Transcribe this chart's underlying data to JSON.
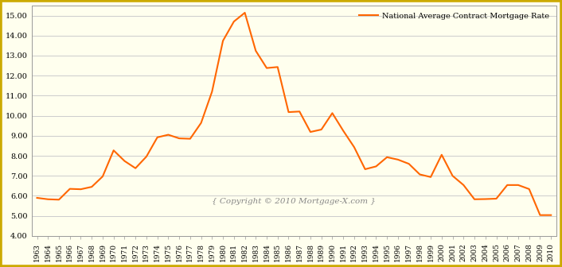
{
  "years": [
    1963,
    1964,
    1965,
    1966,
    1967,
    1968,
    1969,
    1970,
    1971,
    1972,
    1973,
    1974,
    1975,
    1976,
    1977,
    1978,
    1979,
    1980,
    1981,
    1982,
    1983,
    1984,
    1985,
    1986,
    1987,
    1988,
    1989,
    1990,
    1991,
    1992,
    1993,
    1994,
    1995,
    1996,
    1997,
    1998,
    1999,
    2000,
    2001,
    2002,
    2003,
    2004,
    2005,
    2006,
    2007,
    2008,
    2009,
    2010
  ],
  "rates": [
    5.9,
    5.83,
    5.81,
    6.35,
    6.33,
    6.45,
    6.97,
    8.27,
    7.74,
    7.38,
    7.96,
    8.92,
    9.05,
    8.87,
    8.85,
    9.64,
    11.2,
    13.74,
    14.7,
    15.14,
    13.24,
    12.38,
    12.43,
    10.18,
    10.21,
    9.19,
    9.31,
    10.13,
    9.25,
    8.43,
    7.33,
    7.47,
    7.93,
    7.81,
    7.6,
    7.07,
    6.94,
    8.05,
    7.0,
    6.54,
    5.83,
    5.84,
    5.86,
    6.54,
    6.54,
    6.34,
    5.04,
    5.04
  ],
  "line_color": "#FF6600",
  "background_color": "#FFFFEE",
  "border_color": "#CCAA00",
  "grid_color": "#CCCCCC",
  "ylim": [
    4.0,
    15.5
  ],
  "yticks": [
    4,
    5,
    6,
    7,
    8,
    9,
    10,
    11,
    12,
    13,
    14,
    15
  ],
  "legend_label": "National Average Contract Mortgage Rate",
  "copyright_text": "{ Copyright © 2010 Mortgage-X.com }",
  "line_width": 1.5
}
